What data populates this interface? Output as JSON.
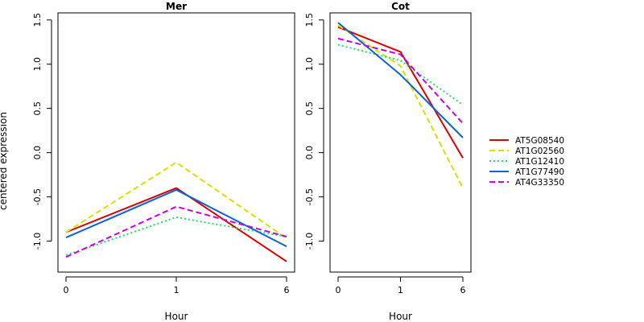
{
  "chart_data": {
    "type": "line",
    "ylabel": "centered expression",
    "xlabel": "Hour",
    "x": [
      "0",
      "1",
      "6"
    ],
    "ylim": [
      -1.35,
      1.58
    ],
    "yticks": [
      "-1.0",
      "-0.5",
      "0.0",
      "0.5",
      "1.0",
      "1.5"
    ],
    "ytick_values": [
      -1.0,
      -0.5,
      0.0,
      0.5,
      1.0,
      1.5
    ],
    "legend_position": "right",
    "panels": [
      {
        "title": "Mer",
        "series": [
          {
            "name": "AT5G08540",
            "values": [
              -0.9,
              -0.4,
              -1.23
            ]
          },
          {
            "name": "AT1G02560",
            "values": [
              -0.9,
              -0.11,
              -0.97
            ]
          },
          {
            "name": "AT1G12410",
            "values": [
              -1.16,
              -0.73,
              -0.95
            ]
          },
          {
            "name": "AT1G77490",
            "values": [
              -0.96,
              -0.42,
              -1.06
            ]
          },
          {
            "name": "AT4G33350",
            "values": [
              -1.18,
              -0.61,
              -0.95
            ]
          }
        ]
      },
      {
        "title": "Cot",
        "series": [
          {
            "name": "AT5G08540",
            "values": [
              1.42,
              1.14,
              -0.06
            ]
          },
          {
            "name": "AT1G02560",
            "values": [
              1.44,
              0.98,
              -0.4
            ]
          },
          {
            "name": "AT1G12410",
            "values": [
              1.22,
              1.04,
              0.54
            ]
          },
          {
            "name": "AT1G77490",
            "values": [
              1.47,
              0.88,
              0.17
            ]
          },
          {
            "name": "AT4G33350",
            "values": [
              1.29,
              1.11,
              0.33
            ]
          }
        ]
      }
    ],
    "series_styles": [
      {
        "name": "AT5G08540",
        "color": "#dd0000",
        "dash": "solid"
      },
      {
        "name": "AT1G02560",
        "color": "#d8e000",
        "dash": "dashed"
      },
      {
        "name": "AT1G12410",
        "color": "#22e060",
        "dash": "dotted"
      },
      {
        "name": "AT1G77490",
        "color": "#0a64d8",
        "dash": "solid"
      },
      {
        "name": "AT4G33350",
        "color": "#cc00dd",
        "dash": "dashed"
      }
    ]
  }
}
